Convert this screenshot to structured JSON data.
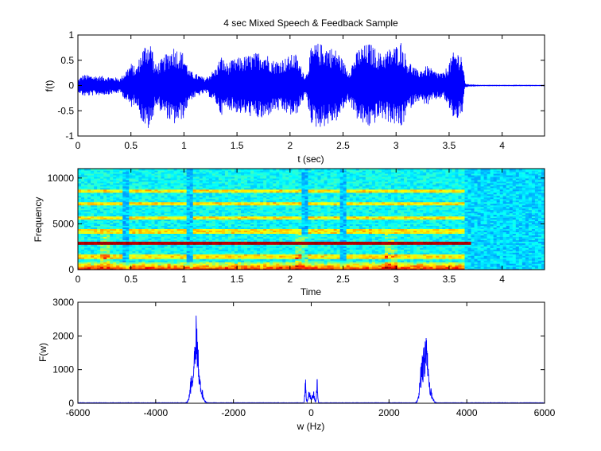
{
  "chart_data": [
    {
      "type": "line",
      "title": "4 sec Mixed Speech & Feedback Sample",
      "xlabel": "t (sec)",
      "ylabel": "f(t)",
      "xlim": [
        0,
        4.4
      ],
      "ylim": [
        -1,
        1
      ],
      "xticks": [
        0,
        0.5,
        1,
        1.5,
        2,
        2.5,
        3,
        3.5,
        4
      ],
      "xtick_labels": [
        "0",
        "0.5",
        "1",
        "1.5",
        "2",
        "2.5",
        "3",
        "3.5",
        "4"
      ],
      "yticks": [
        -1,
        -0.5,
        0,
        0.5,
        1
      ],
      "ytick_labels": [
        "-1",
        "-0.5",
        "0",
        "0.5",
        "1"
      ],
      "color": "#0000ff",
      "envelope": {
        "t": [
          0,
          0.05,
          0.15,
          0.3,
          0.4,
          0.45,
          0.5,
          0.55,
          0.6,
          0.65,
          0.7,
          0.72,
          0.8,
          0.9,
          1.0,
          1.05,
          1.2,
          1.3,
          1.35,
          1.4,
          1.5,
          1.6,
          1.75,
          1.85,
          1.95,
          2.05,
          2.1,
          2.15,
          2.2,
          2.25,
          2.35,
          2.45,
          2.55,
          2.65,
          2.75,
          2.85,
          2.95,
          3.0,
          3.05,
          3.1,
          3.2,
          3.3,
          3.35,
          3.45,
          3.55,
          3.62,
          3.65,
          3.7,
          3.8,
          4.0,
          4.2,
          4.4
        ],
        "amp": [
          0.12,
          0.22,
          0.2,
          0.18,
          0.15,
          0.3,
          0.45,
          0.35,
          0.7,
          0.9,
          0.85,
          0.4,
          0.55,
          0.8,
          0.65,
          0.3,
          0.15,
          0.35,
          0.6,
          0.45,
          0.55,
          0.6,
          0.7,
          0.5,
          0.55,
          0.65,
          0.4,
          0.2,
          0.75,
          0.85,
          0.8,
          0.7,
          0.3,
          0.75,
          0.85,
          0.65,
          0.75,
          0.8,
          0.9,
          0.55,
          0.3,
          0.4,
          0.3,
          0.25,
          0.7,
          0.65,
          0.05,
          0.01,
          0.005,
          0.005,
          0.005,
          0.005
        ]
      }
    },
    {
      "type": "heatmap",
      "title": "",
      "xlabel": "Time",
      "ylabel": "Frequency",
      "xlim": [
        0,
        4.4
      ],
      "ylim": [
        0,
        11025
      ],
      "xticks": [
        0,
        0.5,
        1,
        1.5,
        2,
        2.5,
        3,
        3.5,
        4
      ],
      "xtick_labels": [
        "0",
        "0.5",
        "1",
        "1.5",
        "2",
        "2.5",
        "3",
        "3.5",
        "4"
      ],
      "yticks": [
        0,
        5000,
        10000
      ],
      "ytick_labels": [
        "0",
        "5000",
        "10000"
      ],
      "feedback_tone_hz": 2950,
      "harmonic_bands_hz": [
        1450,
        4250,
        5700,
        7200,
        8650
      ],
      "activity_end_time": 3.65,
      "colormap": "jet"
    },
    {
      "type": "line",
      "title": "",
      "xlabel": "w (Hz)",
      "ylabel": "F(w)",
      "xlim": [
        -6000,
        6000
      ],
      "ylim": [
        0,
        3000
      ],
      "xticks": [
        -6000,
        -4000,
        -2000,
        0,
        2000,
        4000,
        6000
      ],
      "xtick_labels": [
        "-6000",
        "-4000",
        "-2000",
        "0",
        "2000",
        "4000",
        "6000"
      ],
      "yticks": [
        0,
        1000,
        2000,
        3000
      ],
      "ytick_labels": [
        "0",
        "1000",
        "2000",
        "3000"
      ],
      "color": "#0000ff",
      "peaks": [
        {
          "w": -2950,
          "F": 2450,
          "width": 120
        },
        {
          "w": -3050,
          "F": 1100,
          "width": 150
        },
        {
          "w": -2850,
          "F": 600,
          "width": 160
        },
        {
          "w": 2950,
          "F": 1950,
          "width": 120
        },
        {
          "w": 2850,
          "F": 1300,
          "width": 150
        },
        {
          "w": 3050,
          "F": 500,
          "width": 160
        },
        {
          "w": -150,
          "F": 780,
          "width": 40
        },
        {
          "w": 150,
          "F": 780,
          "width": 40
        },
        {
          "w": -50,
          "F": 400,
          "width": 80
        },
        {
          "w": 50,
          "F": 400,
          "width": 80
        }
      ]
    }
  ]
}
